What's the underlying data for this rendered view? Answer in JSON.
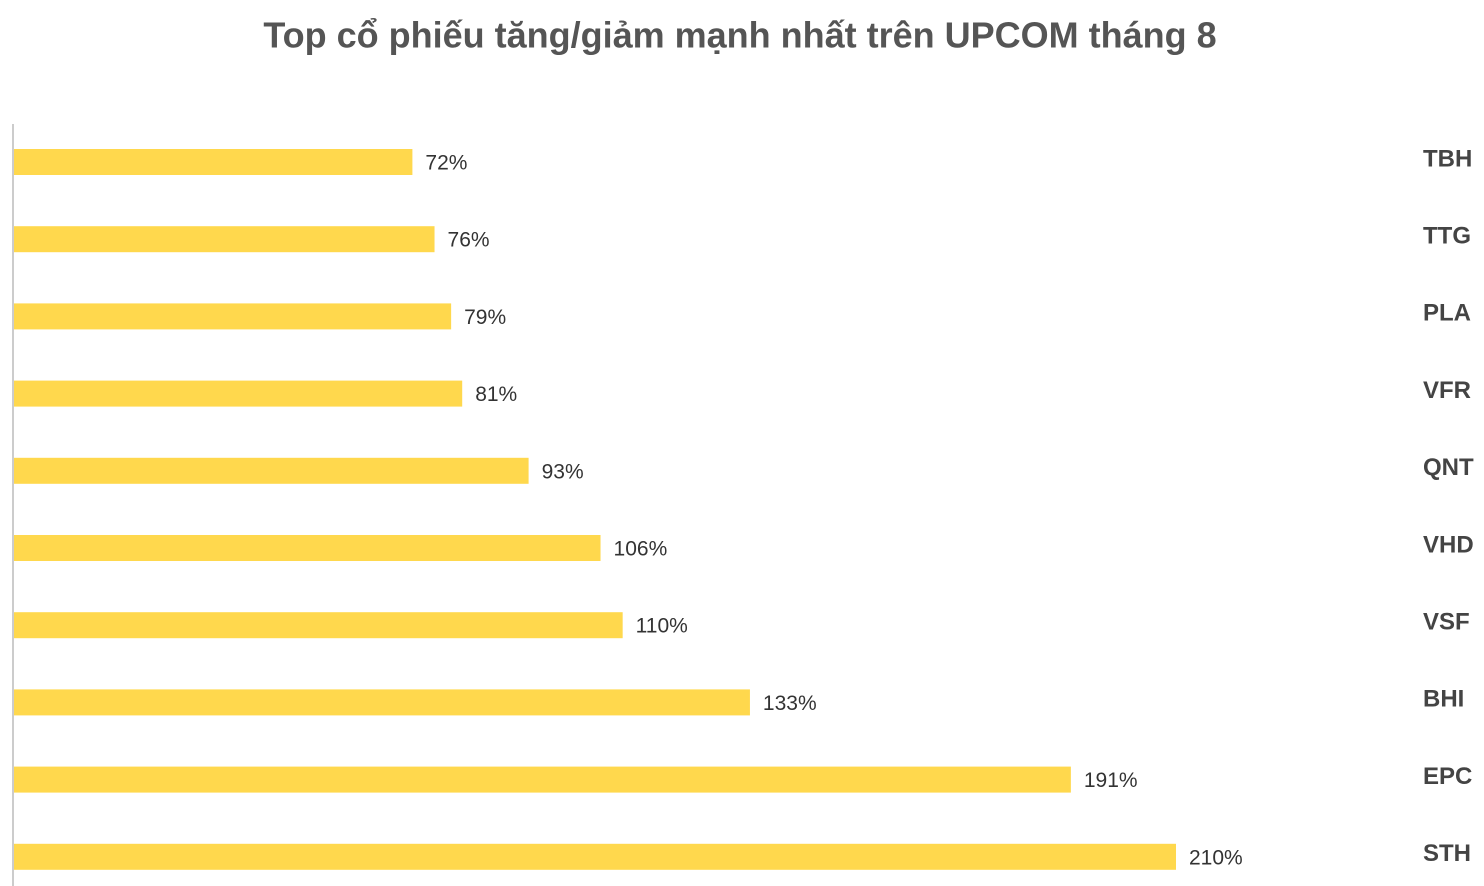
{
  "chart_data": {
    "type": "bar",
    "orientation": "horizontal",
    "title": "Top cổ phiếu tăng/giảm mạnh nhất trên UPCOM tháng 8",
    "categories": [
      "TBH",
      "TTG",
      "PLA",
      "VFR",
      "QNT",
      "VHD",
      "VSF",
      "BHI",
      "EPC",
      "STH"
    ],
    "values": [
      72,
      76,
      79,
      81,
      93,
      106,
      110,
      133,
      191,
      210
    ],
    "value_labels": [
      "72%",
      "76%",
      "79%",
      "81%",
      "93%",
      "106%",
      "110%",
      "133%",
      "191%",
      "210%"
    ],
    "color": "#ffd84d"
  }
}
